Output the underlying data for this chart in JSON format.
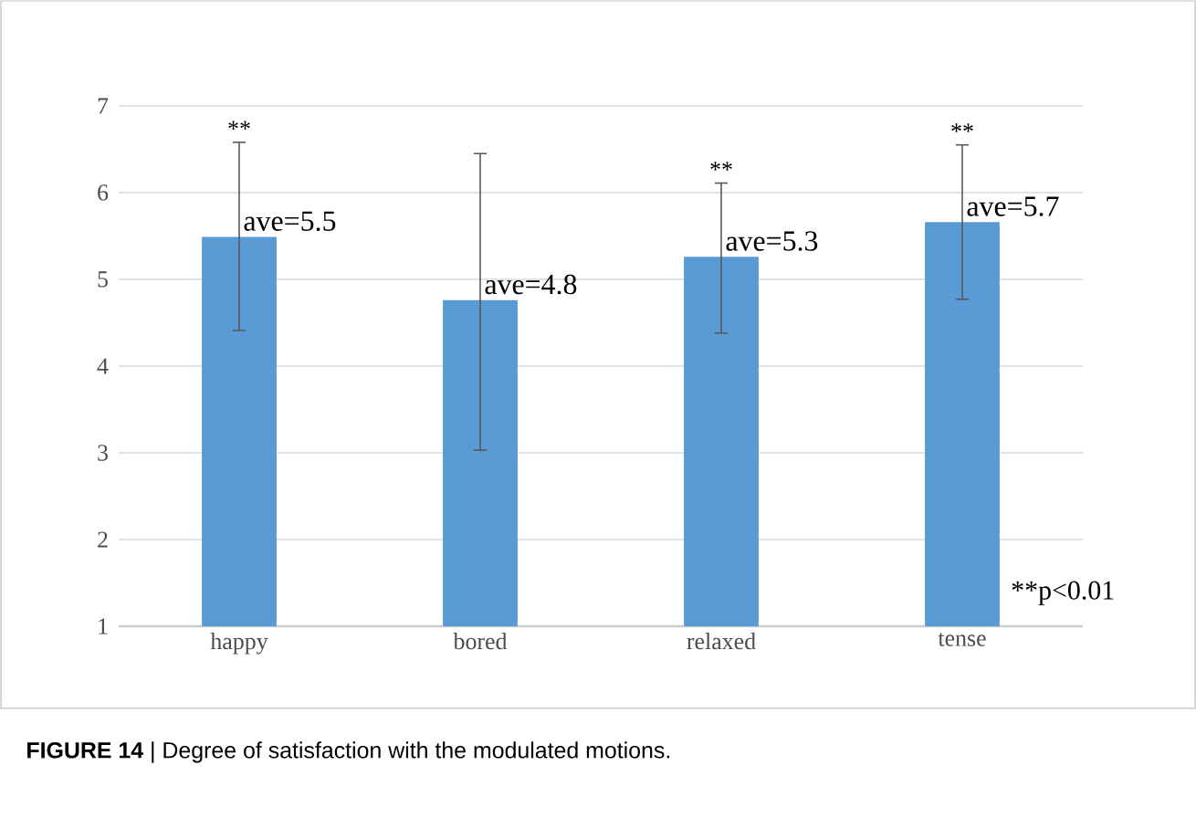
{
  "chart_data": {
    "type": "bar",
    "categories": [
      "happy",
      "bored",
      "relaxed",
      "tense"
    ],
    "values": [
      5.49,
      4.76,
      5.26,
      5.66
    ],
    "errors": [
      [
        4.41,
        6.58
      ],
      [
        3.03,
        6.45
      ],
      [
        4.38,
        6.11
      ],
      [
        4.77,
        6.55
      ]
    ],
    "value_labels": [
      "ave=5.5",
      "ave=4.8",
      "ave=5.3",
      "ave=5.7"
    ],
    "color": "#5b9bd5",
    "ylim": [
      1,
      7
    ],
    "yticks": [
      1,
      2,
      3,
      4,
      5,
      6,
      7
    ],
    "grid": "y",
    "annotations": [
      {
        "text": "**",
        "x": "happy",
        "y": 6.58
      },
      {
        "text": "**",
        "x": "relaxed",
        "y": 6.11
      },
      {
        "text": "**",
        "x": "tense",
        "y": 6.55
      },
      "**p<0.01",
      "**FIGURE 14** | Degree of satisfaction with the modulated motions."
    ]
  }
}
